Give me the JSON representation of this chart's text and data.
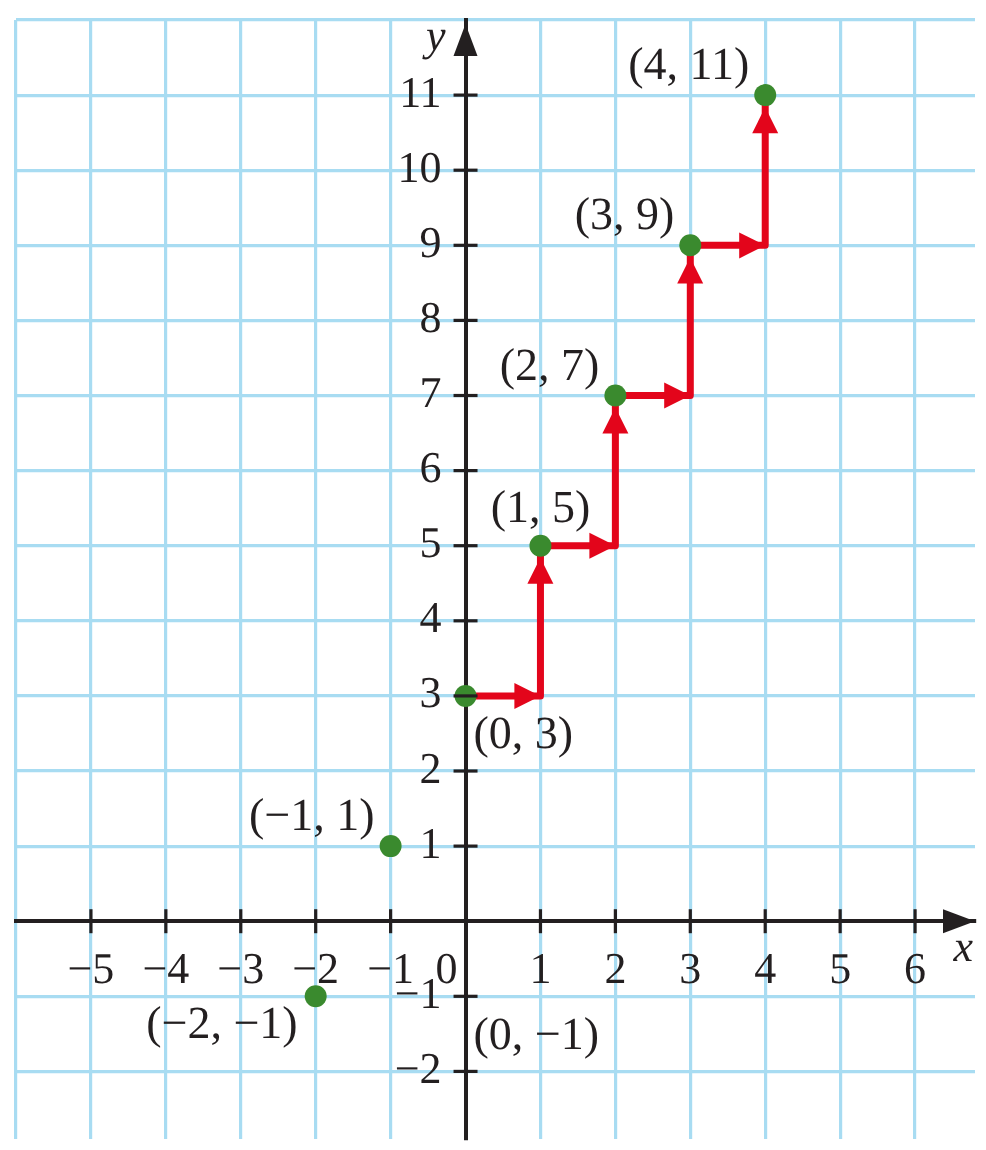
{
  "chart_data": {
    "type": "scatter",
    "xlabel": "x",
    "ylabel": "y",
    "xlim": [
      -6,
      6.8
    ],
    "ylim": [
      -2.9,
      12
    ],
    "xticks": [
      {
        "value": -6,
        "label": null
      },
      {
        "value": -5,
        "label": "−5"
      },
      {
        "value": -4,
        "label": "−4"
      },
      {
        "value": -3,
        "label": "−3"
      },
      {
        "value": -2,
        "label": "−2"
      },
      {
        "value": -1,
        "label": "−1"
      },
      0,
      1,
      2,
      3,
      4,
      5,
      6
    ],
    "yticks": [
      {
        "value": -2,
        "label": "−2"
      },
      {
        "value": -1,
        "label": "−1"
      },
      1,
      2,
      3,
      4,
      5,
      6,
      7,
      8,
      9,
      10,
      11,
      {
        "value": 12,
        "label": null
      }
    ],
    "grid": true,
    "marker": "circle",
    "series": [
      {
        "type": "step",
        "color": "#e3051b",
        "x": [
          0,
          1,
          2,
          3,
          4
        ],
        "values": [
          3,
          5,
          7,
          9,
          11
        ],
        "marker": "none"
      },
      {
        "type": "scatter",
        "color": "#3a8a2e",
        "x": [
          -2,
          -1,
          0,
          1,
          2,
          3,
          4
        ],
        "values": [
          -1,
          1,
          3,
          5,
          7,
          9,
          11
        ]
      }
    ],
    "annotations": [
      {
        "text": "(4, 11)",
        "x": 4,
        "y": 11
      },
      {
        "text": "(3, 9)",
        "x": 3,
        "y": 9
      },
      {
        "text": "(2, 7)",
        "x": 2,
        "y": 7
      },
      {
        "text": "(1, 5)",
        "x": 1,
        "y": 5
      },
      {
        "text": "(0, 3)",
        "x": 0,
        "y": 3
      },
      {
        "text": "(−1, 1)",
        "x": -1,
        "y": 1
      },
      {
        "text": "(−2, −1)",
        "x": -2,
        "y": -1
      },
      "(0, −1)"
    ]
  }
}
